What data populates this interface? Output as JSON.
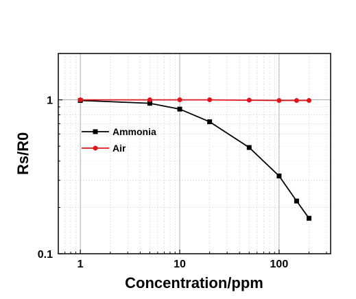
{
  "chart_data": {
    "type": "line",
    "title": "",
    "xlabel": "Concentration/ppm",
    "ylabel": "Rs/R0",
    "xscale": "log",
    "yscale": "log",
    "xlim": [
      0.6,
      330
    ],
    "ylim": [
      0.1,
      2
    ],
    "x_ticks": [
      "1",
      "10",
      "100"
    ],
    "y_ticks": [
      "0.1",
      "1"
    ],
    "grid": true,
    "legend_position": "center-left",
    "series": [
      {
        "name": "Ammonia",
        "color": "#000000",
        "marker": "square",
        "x": [
          1,
          5,
          10,
          20,
          50,
          100,
          150,
          200
        ],
        "y": [
          0.99,
          0.95,
          0.87,
          0.72,
          0.49,
          0.32,
          0.22,
          0.17
        ]
      },
      {
        "name": "Air",
        "color": "#e0141a",
        "marker": "circle",
        "x": [
          1,
          5,
          10,
          20,
          50,
          100,
          150,
          200
        ],
        "y": [
          1.0,
          1.0,
          1.0,
          1.0,
          0.995,
          0.99,
          0.99,
          0.99
        ]
      }
    ]
  }
}
